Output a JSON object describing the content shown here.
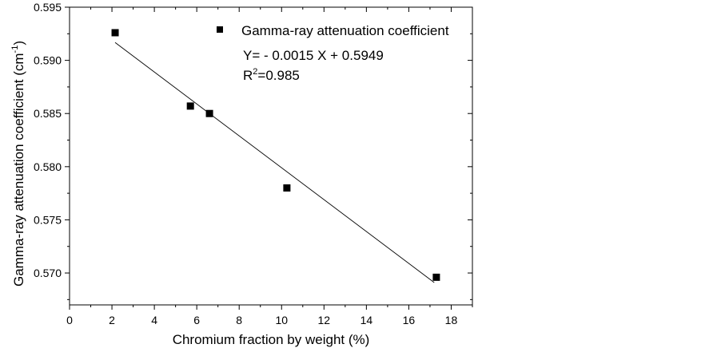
{
  "chart_data": {
    "type": "scatter",
    "title": "",
    "xlabel": "Chromium fraction by weight (%)",
    "ylabel_main": "Gamma-ray attenuation coefficient (cm",
    "ylabel_sup": "-1",
    "ylabel_close": ")",
    "xlim": [
      0,
      19
    ],
    "ylim": [
      0.567,
      0.595
    ],
    "xticks": [
      0,
      2,
      4,
      6,
      8,
      10,
      12,
      14,
      16,
      18
    ],
    "xtick_labels": [
      "0",
      "2",
      "4",
      "6",
      "8",
      "10",
      "12",
      "14",
      "16",
      "18"
    ],
    "yticks": [
      0.57,
      0.575,
      0.58,
      0.585,
      0.59,
      0.595
    ],
    "ytick_labels": [
      "0.570",
      "0.575",
      "0.580",
      "0.585",
      "0.590",
      "0.595"
    ],
    "series": [
      {
        "name": "Gamma-ray attenuation coefficient",
        "marker": "square",
        "x": [
          2.15,
          5.7,
          6.6,
          10.25,
          17.3
        ],
        "y": [
          0.5926,
          0.5857,
          0.585,
          0.578,
          0.5696
        ]
      }
    ],
    "fit": {
      "x_range": [
        2.15,
        17.2
      ],
      "slope": -0.0015,
      "intercept": 0.5949
    },
    "annotation": {
      "equation": "Y= - 0.0015 X + 0.5949",
      "r2_prefix": "R",
      "r2_sup": "2",
      "r2_value": "=0.985"
    },
    "legend_position": "top-right",
    "grid": false
  }
}
